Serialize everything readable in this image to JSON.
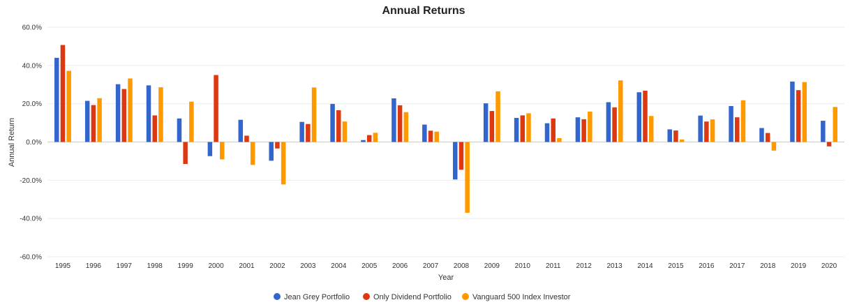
{
  "chart_data": {
    "type": "bar",
    "title": "Annual Returns",
    "xlabel": "Year",
    "ylabel": "Annual Return",
    "ylim": [
      -60,
      60
    ],
    "yticks": [
      "60.0%",
      "40.0%",
      "20.0%",
      "0.0%",
      "-20.0%",
      "-40.0%",
      "-60.0%"
    ],
    "ytick_values": [
      60,
      40,
      20,
      0,
      -20,
      -40,
      -60
    ],
    "grid": true,
    "legend_position": "bottom",
    "categories": [
      "1995",
      "1996",
      "1997",
      "1998",
      "1999",
      "2000",
      "2001",
      "2002",
      "2003",
      "2004",
      "2005",
      "2006",
      "2007",
      "2008",
      "2009",
      "2010",
      "2011",
      "2012",
      "2013",
      "2014",
      "2015",
      "2016",
      "2017",
      "2018",
      "2019",
      "2020"
    ],
    "series": [
      {
        "name": "Jean Grey Portfolio",
        "color": "#3366cc",
        "values": [
          44.0,
          21.5,
          30.2,
          29.6,
          12.3,
          -7.4,
          11.6,
          -9.8,
          10.5,
          19.9,
          1.0,
          22.8,
          9.1,
          -19.6,
          20.2,
          12.6,
          9.8,
          12.9,
          20.8,
          26.0,
          6.6,
          13.8,
          18.8,
          7.3,
          31.6,
          11.1
        ]
      },
      {
        "name": "Only Dividend Portfolio",
        "color": "#dc3912",
        "values": [
          50.7,
          19.3,
          27.7,
          13.9,
          -11.5,
          35.0,
          3.3,
          -3.4,
          9.4,
          16.6,
          3.6,
          19.2,
          5.9,
          -14.5,
          16.2,
          13.9,
          12.3,
          11.9,
          18.1,
          26.8,
          6.0,
          10.7,
          12.9,
          4.7,
          27.1,
          -2.3
        ]
      },
      {
        "name": "Vanguard 500 Index Investor",
        "color": "#ff9900",
        "values": [
          37.2,
          22.9,
          33.2,
          28.6,
          21.1,
          -9.1,
          -12.0,
          -22.2,
          28.5,
          10.7,
          4.8,
          15.6,
          5.4,
          -37.0,
          26.5,
          15.0,
          2.0,
          15.9,
          32.2,
          13.6,
          1.3,
          11.8,
          21.8,
          -4.5,
          31.3,
          18.3
        ]
      }
    ]
  }
}
